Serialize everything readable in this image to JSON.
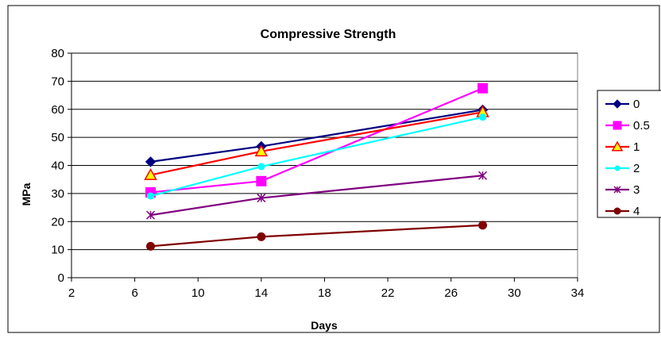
{
  "chart_data": {
    "type": "line",
    "title": "Compressive Strength",
    "xlabel": "Days",
    "ylabel": "MPa",
    "xlim": [
      2,
      34
    ],
    "ylim": [
      0,
      80
    ],
    "x_ticks": [
      2,
      6,
      10,
      14,
      18,
      22,
      26,
      30,
      34
    ],
    "y_ticks": [
      0,
      10,
      20,
      30,
      40,
      50,
      60,
      70,
      80
    ],
    "grid": "horizontal",
    "legend_position": "right",
    "series": [
      {
        "name": "0",
        "color": "#000080",
        "marker": "diamond",
        "x": [
          7,
          14,
          28
        ],
        "y": [
          41.3,
          46.8,
          59.8
        ]
      },
      {
        "name": "0.5",
        "color": "#ff00ff",
        "marker": "square",
        "x": [
          7,
          14,
          28
        ],
        "y": [
          30.4,
          34.4,
          67.5
        ]
      },
      {
        "name": "1",
        "color": "#ff0000",
        "marker": "triangle",
        "x": [
          7,
          14,
          28
        ],
        "y": [
          36.6,
          45.0,
          59.0
        ]
      },
      {
        "name": "2",
        "color": "#00ffff",
        "marker": "circle",
        "x": [
          7,
          14,
          28
        ],
        "y": [
          29.1,
          39.6,
          57.2
        ]
      },
      {
        "name": "3",
        "color": "#800080",
        "marker": "star",
        "x": [
          7,
          14,
          28
        ],
        "y": [
          22.3,
          28.4,
          36.4
        ]
      },
      {
        "name": "4",
        "color": "#800000",
        "marker": "circle",
        "x": [
          7,
          14,
          28
        ],
        "y": [
          11.2,
          14.6,
          18.7
        ]
      }
    ]
  }
}
